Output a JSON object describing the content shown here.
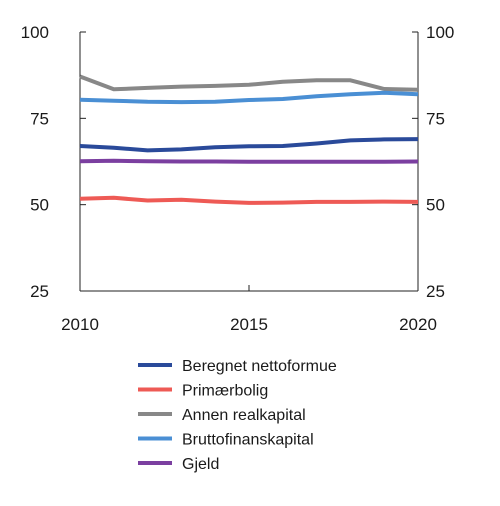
{
  "chart_data": {
    "type": "line",
    "title": "",
    "xlabel": "",
    "ylabel": "",
    "xlim": [
      2010,
      2020
    ],
    "ylim": [
      25,
      100
    ],
    "x_ticks": [
      2010,
      2015,
      2020
    ],
    "y_ticks": [
      25,
      50,
      75,
      100
    ],
    "grid": false,
    "legend_position": "bottom",
    "x": [
      2010,
      2011,
      2012,
      2013,
      2014,
      2015,
      2016,
      2017,
      2018,
      2019,
      2020
    ],
    "series": [
      {
        "name": "Beregnet nettoformue",
        "color": "#2a4a9a",
        "values": [
          67.0,
          66.5,
          65.7,
          66.0,
          66.6,
          66.9,
          67.0,
          67.7,
          68.6,
          68.9,
          69.0
        ]
      },
      {
        "name": "Primærbolig",
        "color": "#ee5a55",
        "values": [
          51.7,
          52.0,
          51.2,
          51.4,
          50.9,
          50.5,
          50.6,
          50.8,
          50.8,
          50.9,
          50.8
        ]
      },
      {
        "name": "Annen realkapital",
        "color": "#888888",
        "values": [
          87.1,
          83.4,
          83.8,
          84.2,
          84.4,
          84.7,
          85.6,
          86.0,
          86.0,
          83.5,
          83.3
        ]
      },
      {
        "name": "Bruttofinanskapital",
        "color": "#4a8fd4",
        "values": [
          80.4,
          80.1,
          79.8,
          79.7,
          79.8,
          80.3,
          80.6,
          81.4,
          82.0,
          82.4,
          82.0
        ]
      },
      {
        "name": "Gjeld",
        "color": "#7b3fa0",
        "values": [
          62.6,
          62.7,
          62.6,
          62.5,
          62.5,
          62.4,
          62.4,
          62.4,
          62.4,
          62.4,
          62.5
        ]
      }
    ]
  }
}
